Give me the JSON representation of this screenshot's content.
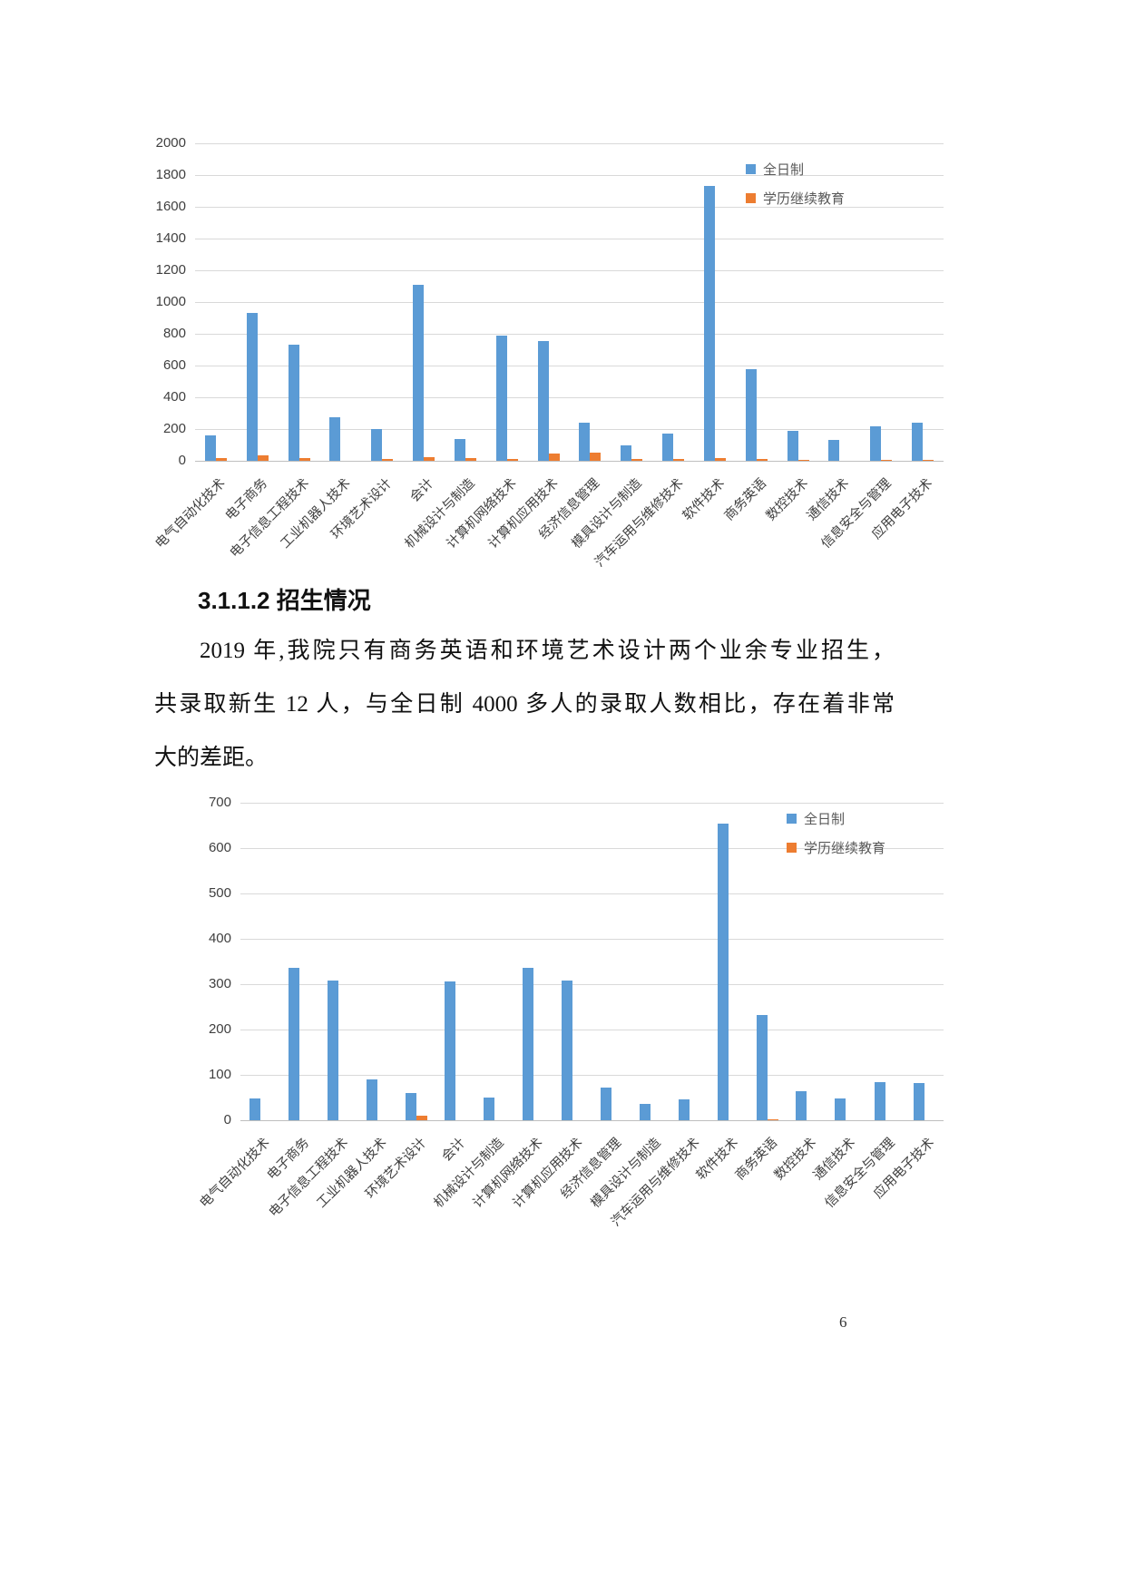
{
  "page": {
    "number": "6"
  },
  "section": {
    "heading": "3.1.1.2 招生情况"
  },
  "paragraph": {
    "line1": "2019 年,我院只有商务英语和环境艺术设计两个业余专业招生，",
    "line2": "共录取新生 12 人，与全日制 4000 多人的录取人数相比，存在着非常",
    "line3": "大的差距。"
  },
  "colors": {
    "fulltime": "#5b9bd5",
    "continuing": "#ed7d31",
    "gridline": "#d9d9d9",
    "tick_text": "#3f3f3f"
  },
  "legend": {
    "fulltime_label": "全日制",
    "continuing_label": "学历继续教育"
  },
  "chart_data": [
    {
      "type": "bar",
      "title": "",
      "categories": [
        "电气自动化技术",
        "电子商务",
        "电子信息工程技术",
        "工业机器人技术",
        "环境艺术设计",
        "会计",
        "机械设计与制造",
        "计算机网络技术",
        "计算机应用技术",
        "经济信息管理",
        "模具设计与制造",
        "汽车运用与维修技术",
        "软件技术",
        "商务英语",
        "数控技术",
        "通信技术",
        "信息安全与管理",
        "应用电子技术"
      ],
      "series": [
        {
          "name": "全日制",
          "color": "#5b9bd5",
          "values": [
            160,
            930,
            730,
            275,
            200,
            1110,
            135,
            790,
            755,
            240,
            100,
            170,
            1730,
            580,
            190,
            130,
            215,
            240
          ]
        },
        {
          "name": "学历继续教育",
          "color": "#ed7d31",
          "values": [
            15,
            35,
            15,
            0,
            10,
            25,
            18,
            10,
            45,
            50,
            14,
            10,
            15,
            10,
            8,
            0,
            8,
            8
          ]
        }
      ],
      "xlabel": "",
      "ylabel": "",
      "ylim": [
        0,
        2000
      ],
      "ytick_step": 200,
      "grid": true,
      "legend_position": "top-right"
    },
    {
      "type": "bar",
      "title": "",
      "categories": [
        "电气自动化技术",
        "电子商务",
        "电子信息工程技术",
        "工业机器人技术",
        "环境艺术设计",
        "会计",
        "机械设计与制造",
        "计算机网络技术",
        "计算机应用技术",
        "经济信息管理",
        "模具设计与制造",
        "汽车运用与维修技术",
        "软件技术",
        "商务英语",
        "数控技术",
        "通信技术",
        "信息安全与管理",
        "应用电子技术"
      ],
      "series": [
        {
          "name": "全日制",
          "color": "#5b9bd5",
          "values": [
            48,
            337,
            308,
            90,
            60,
            307,
            50,
            337,
            308,
            72,
            37,
            47,
            655,
            233,
            65,
            48,
            85,
            83
          ]
        },
        {
          "name": "学历继续教育",
          "color": "#ed7d31",
          "values": [
            0,
            0,
            0,
            0,
            10,
            0,
            0,
            0,
            0,
            0,
            0,
            0,
            0,
            2,
            0,
            0,
            0,
            0
          ]
        }
      ],
      "xlabel": "",
      "ylabel": "",
      "ylim": [
        0,
        700
      ],
      "ytick_step": 100,
      "grid": true,
      "legend_position": "top-right"
    }
  ]
}
